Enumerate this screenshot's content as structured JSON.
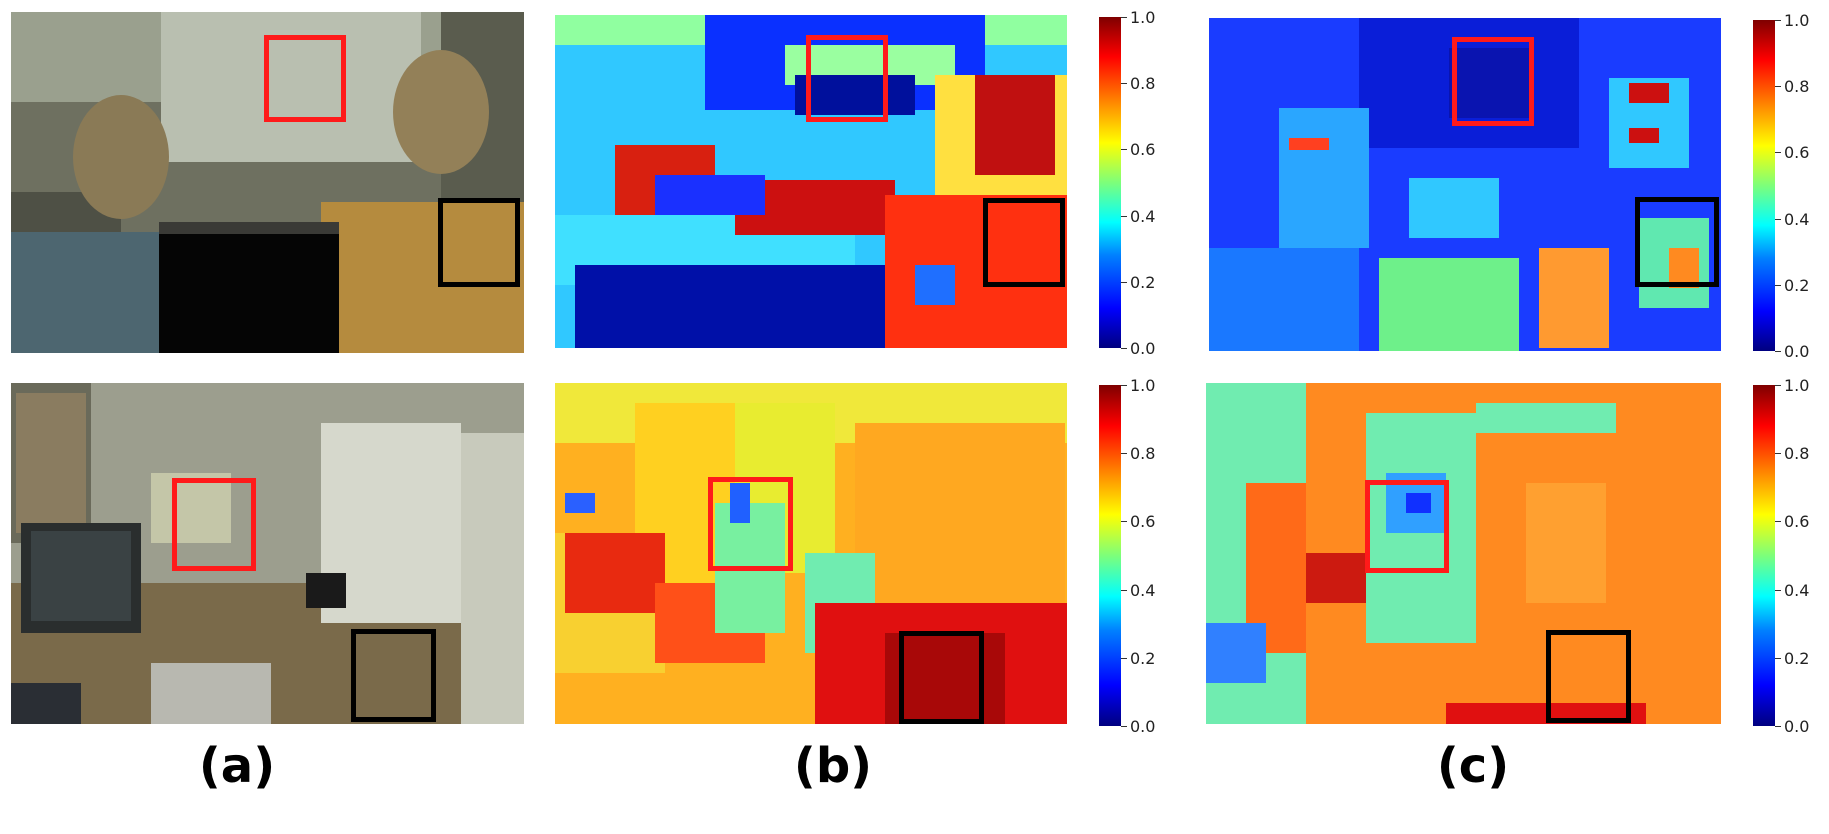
{
  "figure": {
    "captions": [
      "(a)",
      "(b)",
      "(c)"
    ],
    "colorbar_ticks": [
      "0.0",
      "0.2",
      "0.4",
      "0.6",
      "0.8",
      "1.0"
    ],
    "colorbar_range": [
      0.0,
      1.0
    ],
    "colormap": "jet",
    "box_colors": {
      "red": "#ff1a1a",
      "black": "#000000"
    }
  },
  "rows": [
    {
      "scene": "two men seated in office, center region masked black"
    },
    {
      "scene": "room with monitor, white dresser and wooden floor"
    }
  ]
}
